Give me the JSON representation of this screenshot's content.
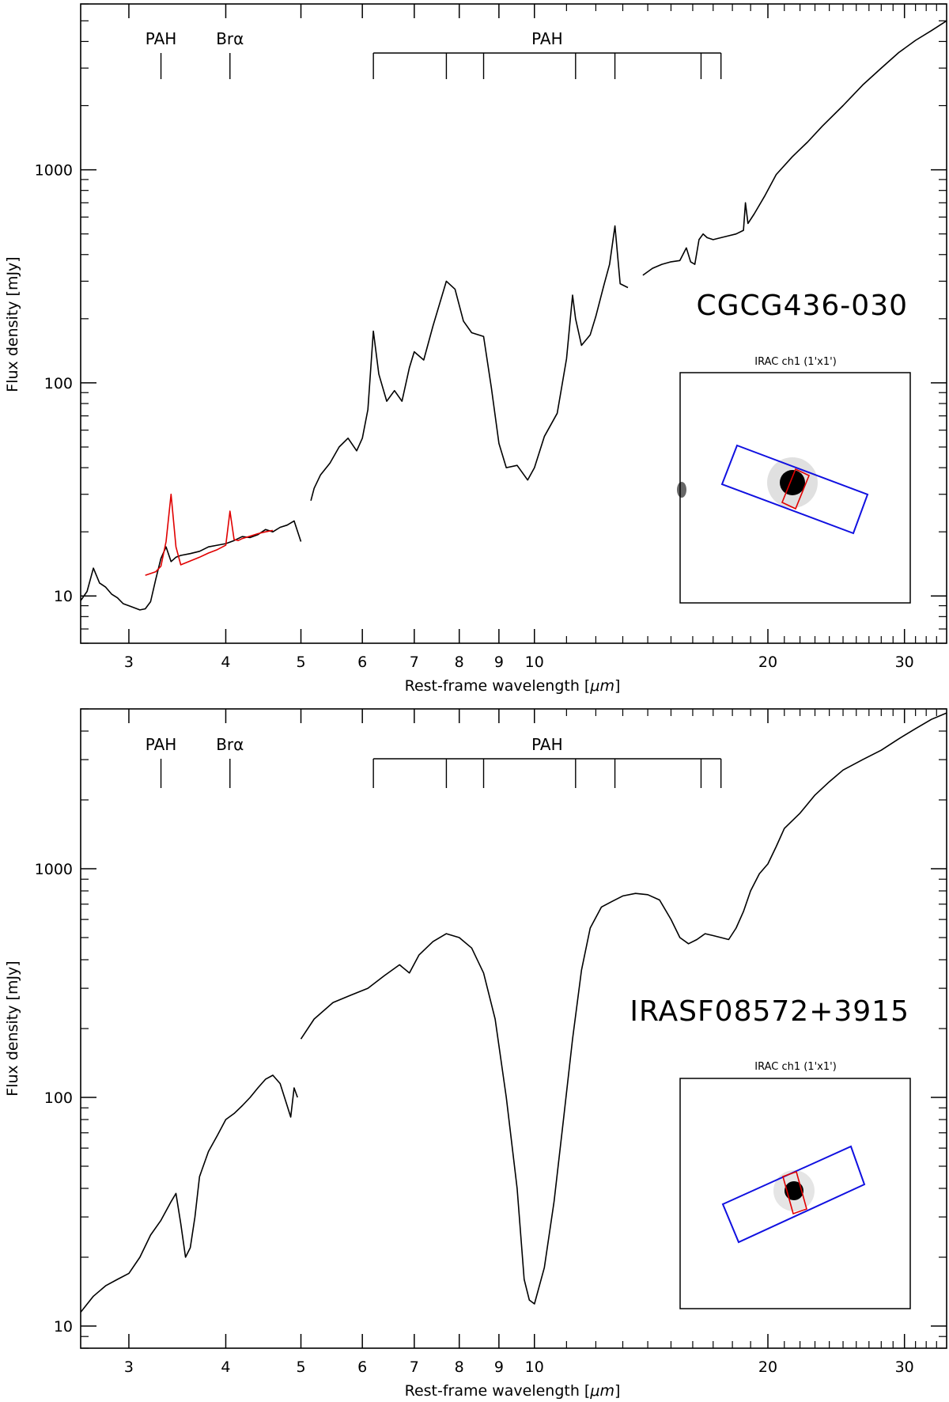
{
  "chart_data": [
    {
      "type": "line",
      "object_label": "CGCG436-030",
      "xlabel_prefix": "Rest-frame wavelength [",
      "xlabel_unit": "μm",
      "xlabel_suffix": "]",
      "ylabel": "Flux density [mJy]",
      "xscale": "log",
      "yscale": "log",
      "xlim": [
        2.6,
        34.0
      ],
      "ylim": [
        6.0,
        6000
      ],
      "x_ticks": [
        3,
        4,
        5,
        6,
        7,
        8,
        9,
        10,
        20,
        30
      ],
      "x_tick_labels": [
        "3",
        "4",
        "5",
        "6",
        "7",
        "8",
        "9",
        "10",
        "20",
        "30"
      ],
      "y_ticks": [
        10,
        100,
        1000
      ],
      "y_tick_labels": [
        "10",
        "100",
        "1000"
      ],
      "features": {
        "pah_short": {
          "label": "PAH",
          "x": 3.3
        },
        "bralpha": {
          "label": "Brα",
          "x": 4.05
        },
        "pah_group": {
          "label": "PAH",
          "x": [
            6.2,
            7.7,
            8.6,
            11.3,
            12.7,
            16.4,
            17.4
          ]
        }
      },
      "inset_title": "IRAC ch1 (1'x1')",
      "series": [
        {
          "color": "#000000",
          "x": [
            2.6,
            2.65,
            2.7,
            2.75,
            2.8,
            2.85,
            2.9,
            2.95,
            3.0,
            3.05,
            3.1,
            3.15,
            3.2,
            3.25,
            3.3,
            3.35,
            3.4,
            3.45,
            3.5,
            3.6,
            3.7,
            3.8,
            3.9,
            4.0,
            4.1,
            4.2,
            4.3,
            4.4,
            4.5,
            4.6,
            4.7,
            4.8,
            4.9,
            5.0
          ],
          "y": [
            9.5,
            10.5,
            13.5,
            11.5,
            11.0,
            10.2,
            9.8,
            9.2,
            9.0,
            8.8,
            8.6,
            8.7,
            9.4,
            12.0,
            15.0,
            17.0,
            14.5,
            15.2,
            15.5,
            15.8,
            16.2,
            17.0,
            17.3,
            17.6,
            18.2,
            19.0,
            18.8,
            19.4,
            20.5,
            20.0,
            21.0,
            21.5,
            22.5,
            18.0
          ]
        },
        {
          "color": "#000000",
          "x": [
            5.15,
            5.2,
            5.3,
            5.45,
            5.6,
            5.75,
            5.9,
            6.0,
            6.1,
            6.2,
            6.3,
            6.45,
            6.6,
            6.75,
            6.9,
            7.0,
            7.2,
            7.4,
            7.7,
            7.9,
            8.1,
            8.3,
            8.6,
            8.8,
            9.0,
            9.2,
            9.5,
            9.8,
            10.0,
            10.3,
            10.7,
            11.0,
            11.2,
            11.3,
            11.5,
            11.8,
            12.0,
            12.3,
            12.5,
            12.7,
            12.9,
            13.2
          ],
          "y": [
            28.0,
            32.0,
            37.0,
            42.0,
            50.0,
            55.0,
            48.0,
            55.0,
            75.0,
            175.0,
            110.0,
            82.0,
            92.0,
            82.0,
            118.0,
            140.0,
            128.0,
            185.0,
            300.0,
            275.0,
            195.0,
            172.0,
            165.0,
            95.0,
            52.0,
            40.0,
            41.0,
            35.0,
            40.0,
            56.0,
            72.0,
            130.0,
            258.0,
            200.0,
            150.0,
            168.0,
            205.0,
            290.0,
            360.0,
            545.0,
            292.0,
            280.0
          ]
        },
        {
          "color": "#000000",
          "x": [
            13.8,
            14.2,
            14.6,
            15.0,
            15.4,
            15.7,
            15.9,
            16.1,
            16.3,
            16.5,
            16.7,
            17.0,
            17.4,
            17.8,
            18.2,
            18.6,
            18.71,
            18.85,
            19.2,
            19.8,
            20.5,
            21.5,
            22.5,
            23.5,
            25.0,
            26.5,
            28.0,
            29.5,
            31.0,
            32.5,
            34.0
          ],
          "y": [
            320.0,
            345.0,
            360.0,
            370.0,
            375.0,
            430.0,
            370.0,
            360.0,
            470.0,
            500.0,
            480.0,
            470.0,
            480.0,
            490.0,
            500.0,
            520.0,
            700.0,
            560.0,
            620.0,
            750.0,
            950.0,
            1150.0,
            1350.0,
            1600.0,
            2000.0,
            2500.0,
            3000.0,
            3550.0,
            4050.0,
            4500.0,
            5000.0
          ]
        },
        {
          "color": "#e00000",
          "x": [
            3.15,
            3.25,
            3.3,
            3.35,
            3.4,
            3.45,
            3.5,
            3.6,
            3.7,
            3.8,
            3.9,
            4.0,
            4.05,
            4.1,
            4.15,
            4.2,
            4.3,
            4.4,
            4.5,
            4.6
          ],
          "y": [
            12.5,
            13.0,
            13.8,
            18.0,
            30.0,
            17.0,
            14.0,
            14.6,
            15.2,
            15.9,
            16.5,
            17.3,
            25.0,
            18.4,
            18.2,
            18.6,
            19.1,
            19.6,
            20.0,
            20.3
          ]
        }
      ]
    },
    {
      "type": "line",
      "object_label": "IRASF08572+3915",
      "xlabel_prefix": "Rest-frame wavelength [",
      "xlabel_unit": "μm",
      "xlabel_suffix": "]",
      "ylabel": "Flux density [mJy]",
      "xscale": "log",
      "yscale": "log",
      "xlim": [
        2.6,
        34.0
      ],
      "ylim": [
        8.0,
        5000
      ],
      "x_ticks": [
        3,
        4,
        5,
        6,
        7,
        8,
        9,
        10,
        20,
        30
      ],
      "x_tick_labels": [
        "3",
        "4",
        "5",
        "6",
        "7",
        "8",
        "9",
        "10",
        "20",
        "30"
      ],
      "y_ticks": [
        10,
        100,
        1000
      ],
      "y_tick_labels": [
        "10",
        "100",
        "1000"
      ],
      "features": {
        "pah_short": {
          "label": "PAH",
          "x": 3.3
        },
        "bralpha": {
          "label": "Brα",
          "x": 4.05
        },
        "pah_group": {
          "label": "PAH",
          "x": [
            6.2,
            7.7,
            8.6,
            11.3,
            12.7,
            16.4,
            17.4
          ]
        }
      },
      "inset_title": "IRAC ch1 (1'x1')",
      "series": [
        {
          "color": "#000000",
          "x": [
            2.6,
            2.7,
            2.8,
            2.9,
            3.0,
            3.1,
            3.2,
            3.3,
            3.4,
            3.45,
            3.5,
            3.55,
            3.6,
            3.65,
            3.7,
            3.8,
            3.9,
            4.0,
            4.1,
            4.2,
            4.3,
            4.4,
            4.5,
            4.6,
            4.7,
            4.8,
            4.85,
            4.9,
            4.95
          ],
          "y": [
            11.5,
            13.5,
            15.0,
            16.0,
            17.0,
            20.0,
            25.0,
            29.0,
            35.0,
            38.0,
            28.0,
            20.0,
            22.0,
            30.0,
            45.0,
            58.0,
            68.0,
            80.0,
            85.0,
            92.0,
            100.0,
            110.0,
            120.0,
            125.0,
            115.0,
            92.0,
            82.0,
            110.0,
            100.0
          ]
        },
        {
          "color": "#000000",
          "x": [
            5.0,
            5.2,
            5.5,
            5.8,
            6.1,
            6.4,
            6.7,
            6.9,
            7.1,
            7.4,
            7.7,
            8.0,
            8.3,
            8.6,
            8.9,
            9.2,
            9.5,
            9.7,
            9.85,
            10.0,
            10.3,
            10.6,
            10.9,
            11.2,
            11.5,
            11.8,
            12.2,
            12.6,
            13.0,
            13.5,
            14.0,
            14.5,
            15.0,
            15.4,
            15.8,
            16.2,
            16.6,
            17.0,
            17.4,
            17.8,
            18.2,
            18.6,
            19.0,
            19.5,
            20.0,
            20.5,
            21.0,
            22.0,
            23.0,
            24.0,
            25.0,
            26.5,
            28.0,
            29.5,
            31.0,
            32.5,
            34.0
          ],
          "y": [
            180.0,
            220.0,
            260.0,
            280.0,
            300.0,
            340.0,
            380.0,
            350.0,
            420.0,
            480.0,
            520.0,
            500.0,
            450.0,
            350.0,
            220.0,
            100.0,
            40.0,
            16.0,
            13.0,
            12.5,
            18.0,
            35.0,
            80.0,
            180.0,
            360.0,
            550.0,
            680.0,
            720.0,
            760.0,
            780.0,
            770.0,
            730.0,
            600.0,
            500.0,
            470.0,
            490.0,
            520.0,
            510.0,
            500.0,
            490.0,
            550.0,
            650.0,
            800.0,
            950.0,
            1050.0,
            1250.0,
            1500.0,
            1750.0,
            2100.0,
            2400.0,
            2700.0,
            3000.0,
            3300.0,
            3700.0,
            4100.0,
            4500.0,
            4800.0
          ]
        }
      ]
    }
  ]
}
